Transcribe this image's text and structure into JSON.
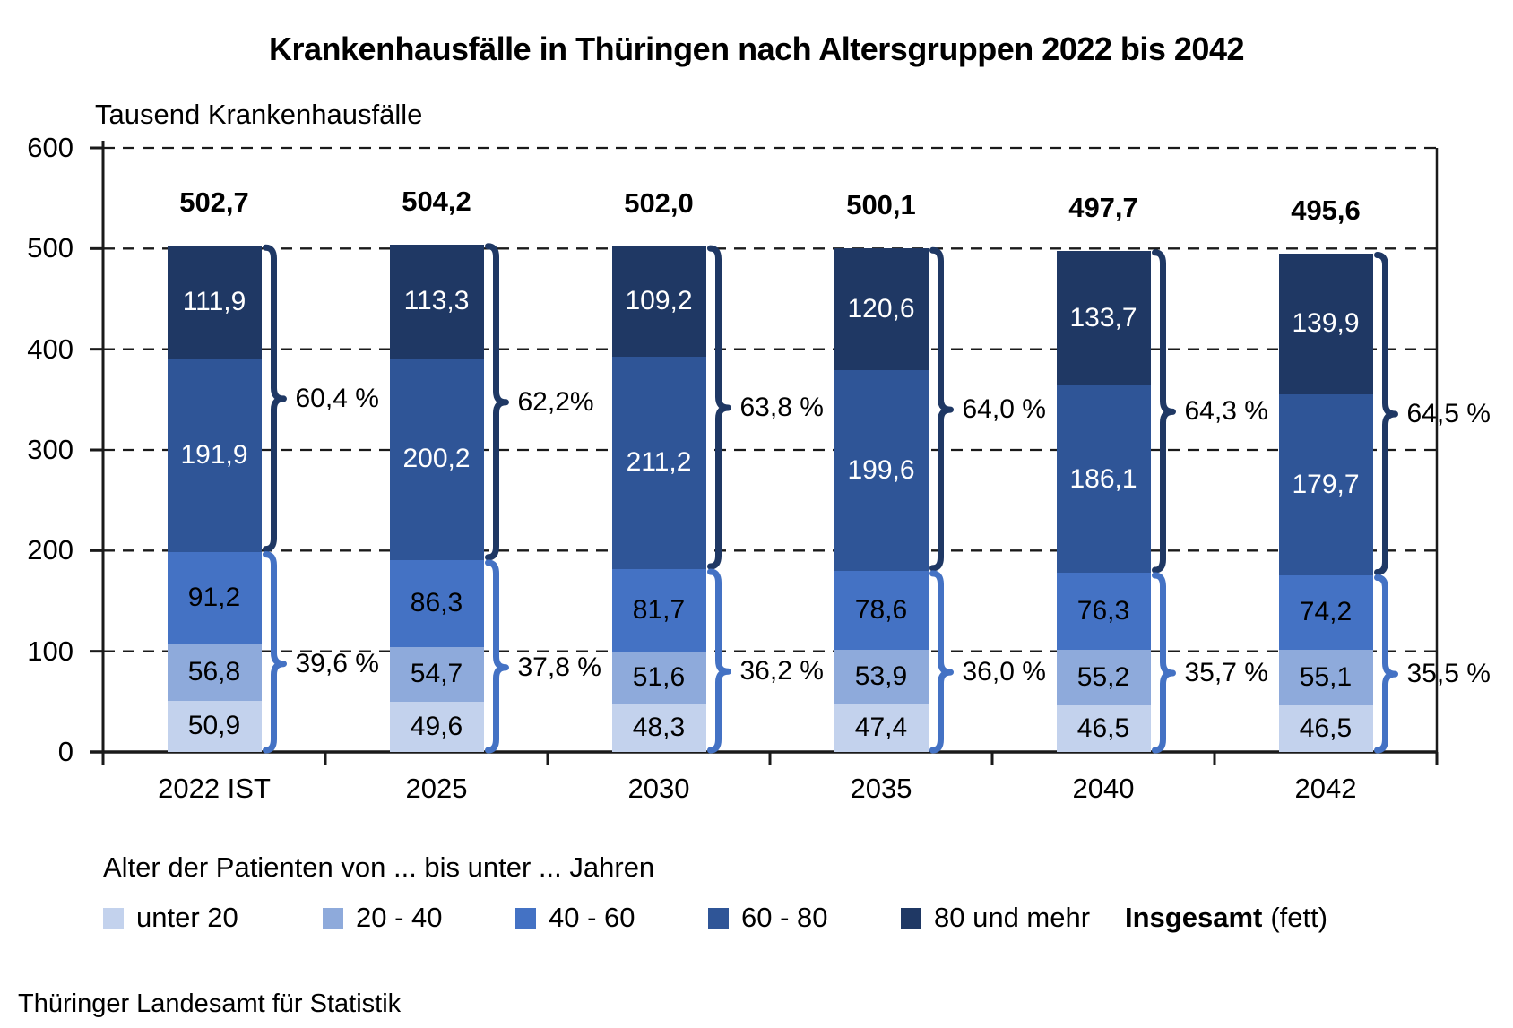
{
  "title": "Krankenhausfälle in Thüringen nach Altersgruppen 2022 bis 2042",
  "y_axis_label": "Tausend Krankenhausfälle",
  "source": "Thüringer Landesamt für Statistik",
  "legend": {
    "title": "Alter der Patienten von ... bis unter ... Jahren",
    "total_label": "Insgesamt",
    "total_suffix": "(fett)"
  },
  "colors": {
    "upper_brace": "#1F3864",
    "lower_brace": "#4472C4",
    "axis": "#1a1a1a"
  },
  "chart_data": {
    "type": "bar",
    "stacked": true,
    "title": "Krankenhausfälle in Thüringen nach Altersgruppen 2022 bis 2042",
    "ylabel": "Tausend Krankenhausfälle",
    "ylim": [
      0,
      600
    ],
    "yticks": [
      0,
      100,
      200,
      300,
      400,
      500,
      600
    ],
    "grid": "dashed",
    "legend_position": "bottom",
    "categories": [
      "2022 IST",
      "2025",
      "2030",
      "2035",
      "2040",
      "2042"
    ],
    "series": [
      {
        "name": "unter 20",
        "color": "#C3D2ED",
        "text_color": "#000000",
        "values": [
          50.9,
          49.6,
          48.3,
          47.4,
          46.5,
          46.5
        ]
      },
      {
        "name": "20 - 40",
        "color": "#8EAADB",
        "text_color": "#000000",
        "values": [
          56.8,
          54.7,
          51.6,
          53.9,
          55.2,
          55.1
        ]
      },
      {
        "name": "40 - 60",
        "color": "#4472C4",
        "text_color": "#000000",
        "values": [
          91.2,
          86.3,
          81.7,
          78.6,
          76.3,
          74.2
        ]
      },
      {
        "name": "60 - 80",
        "color": "#2F5597",
        "text_color": "#ffffff",
        "values": [
          191.9,
          200.2,
          211.2,
          199.6,
          186.1,
          179.7
        ]
      },
      {
        "name": "80 und mehr",
        "color": "#1F3864",
        "text_color": "#ffffff",
        "values": [
          111.9,
          113.3,
          109.2,
          120.6,
          133.7,
          139.9
        ]
      }
    ],
    "totals": [
      "502,7",
      "504,2",
      "502,0",
      "500,1",
      "497,7",
      "495,6"
    ],
    "upper_pct": [
      "60,4 %",
      "62,2%",
      "63,8 %",
      "64,0 %",
      "64,3 %",
      "64,5 %"
    ],
    "lower_pct": [
      "39,6 %",
      "37,8 %",
      "36,2 %",
      "36,0 %",
      "35,7 %",
      "35,5 %"
    ],
    "upper_pct_series": [
      "60 - 80",
      "80 und mehr"
    ],
    "lower_pct_series": [
      "unter 20",
      "20 - 40",
      "40 - 60"
    ]
  }
}
